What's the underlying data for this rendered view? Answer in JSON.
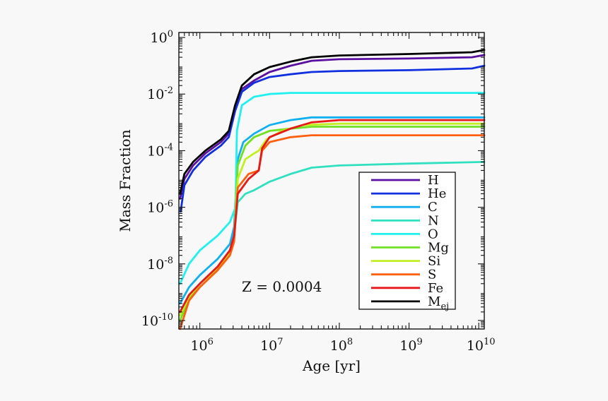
{
  "chart_data": {
    "type": "line",
    "title": "",
    "xlabel": "Age [yr]",
    "ylabel": "Mass Fraction",
    "x_scale": "log",
    "y_scale": "log",
    "xlim": [
      500000,
      12000000000
    ],
    "ylim": [
      5e-11,
      1.5
    ],
    "x_ticks": [
      {
        "value": 1000000,
        "base": "10",
        "exp": "6"
      },
      {
        "value": 10000000,
        "base": "10",
        "exp": "7"
      },
      {
        "value": 100000000,
        "base": "10",
        "exp": "8"
      },
      {
        "value": 1000000000,
        "base": "10",
        "exp": "9"
      },
      {
        "value": 10000000000,
        "base": "10",
        "exp": "10"
      }
    ],
    "y_ticks": [
      {
        "value": 1e-10,
        "base": "10",
        "exp": "-10"
      },
      {
        "value": 1e-08,
        "base": "10",
        "exp": "-8"
      },
      {
        "value": 1e-06,
        "base": "10",
        "exp": "-6"
      },
      {
        "value": 0.0001,
        "base": "10",
        "exp": "-4"
      },
      {
        "value": 0.01,
        "base": "10",
        "exp": "-2"
      },
      {
        "value": 1,
        "base": "10",
        "exp": "0"
      }
    ],
    "annotation": "Z = 0.0004",
    "legend_position": "lower-right",
    "series": [
      {
        "name": "H",
        "sub": "",
        "color": "#5a0fa0",
        "points": [
          [
            520000,
            2e-06
          ],
          [
            600000,
            1e-05
          ],
          [
            800000,
            3e-05
          ],
          [
            1200000,
            8e-05
          ],
          [
            2000000,
            0.0002
          ],
          [
            2600000,
            0.0004
          ],
          [
            3200000,
            0.003
          ],
          [
            4000000,
            0.015
          ],
          [
            6000000,
            0.03
          ],
          [
            10000000,
            0.06
          ],
          [
            20000000,
            0.1
          ],
          [
            40000000,
            0.15
          ],
          [
            100000000,
            0.17
          ],
          [
            1000000000,
            0.18
          ],
          [
            8000000000,
            0.2
          ],
          [
            12000000000,
            0.24
          ]
        ]
      },
      {
        "name": "He",
        "sub": "",
        "color": "#1030e0",
        "points": [
          [
            530000,
            7e-07
          ],
          [
            600000,
            6e-06
          ],
          [
            800000,
            2e-05
          ],
          [
            1200000,
            6e-05
          ],
          [
            2000000,
            0.00015
          ],
          [
            2600000,
            0.0003
          ],
          [
            3200000,
            0.0025
          ],
          [
            4000000,
            0.012
          ],
          [
            6000000,
            0.025
          ],
          [
            10000000,
            0.04
          ],
          [
            20000000,
            0.05
          ],
          [
            40000000,
            0.06
          ],
          [
            100000000,
            0.065
          ],
          [
            1000000000,
            0.07
          ],
          [
            8000000000,
            0.08
          ],
          [
            12000000000,
            0.1
          ]
        ]
      },
      {
        "name": "C",
        "sub": "",
        "color": "#10b0f0",
        "points": [
          [
            520000,
            4e-10
          ],
          [
            700000,
            1.5e-09
          ],
          [
            1000000,
            4e-09
          ],
          [
            1800000,
            1.5e-08
          ],
          [
            2700000,
            5e-08
          ],
          [
            3100000,
            2e-07
          ],
          [
            3500000,
            5e-05
          ],
          [
            4200000,
            0.0002
          ],
          [
            6000000,
            0.0004
          ],
          [
            10000000,
            0.0008
          ],
          [
            20000000,
            0.0012
          ],
          [
            40000000,
            0.0015
          ],
          [
            100000000,
            0.0015
          ],
          [
            12000000000,
            0.0015
          ]
        ]
      },
      {
        "name": "N",
        "sub": "",
        "color": "#30e0c0",
        "points": [
          [
            520000,
            2e-10
          ],
          [
            700000,
            8e-10
          ],
          [
            1000000,
            2e-09
          ],
          [
            1800000,
            8e-09
          ],
          [
            2700000,
            3e-08
          ],
          [
            3100000,
            1e-07
          ],
          [
            3500000,
            1.5e-06
          ],
          [
            4500000,
            3e-06
          ],
          [
            6000000,
            4e-06
          ],
          [
            10000000,
            8e-06
          ],
          [
            20000000,
            1.5e-05
          ],
          [
            40000000,
            2.5e-05
          ],
          [
            100000000,
            3e-05
          ],
          [
            1000000000,
            3.5e-05
          ],
          [
            12000000000,
            4e-05
          ]
        ]
      },
      {
        "name": "O",
        "sub": "",
        "color": "#20f0f0",
        "points": [
          [
            520000,
            2e-09
          ],
          [
            700000,
            1e-08
          ],
          [
            1000000,
            3e-08
          ],
          [
            1800000,
            1e-07
          ],
          [
            2700000,
            3e-07
          ],
          [
            3250000,
            1e-06
          ],
          [
            3400000,
            0.0005
          ],
          [
            4000000,
            0.004
          ],
          [
            6000000,
            0.008
          ],
          [
            10000000,
            0.01
          ],
          [
            20000000,
            0.011
          ],
          [
            100000000,
            0.011
          ],
          [
            12000000000,
            0.011
          ]
        ]
      },
      {
        "name": "Mg",
        "sub": "",
        "color": "#70e020",
        "points": [
          [
            520000,
            1e-10
          ],
          [
            700000,
            6e-10
          ],
          [
            1000000,
            1.5e-09
          ],
          [
            1800000,
            6e-09
          ],
          [
            2700000,
            2.5e-08
          ],
          [
            3100000,
            8e-08
          ],
          [
            3500000,
            3e-05
          ],
          [
            4500000,
            0.00015
          ],
          [
            6000000,
            0.0003
          ],
          [
            10000000,
            0.0005
          ],
          [
            20000000,
            0.0006
          ],
          [
            40000000,
            0.0007
          ],
          [
            100000000,
            0.0007
          ],
          [
            12000000000,
            0.0007
          ]
        ]
      },
      {
        "name": "Si",
        "sub": "",
        "color": "#c0f020",
        "points": [
          [
            520000,
            1.5e-10
          ],
          [
            700000,
            7e-10
          ],
          [
            1000000,
            2e-09
          ],
          [
            1800000,
            7e-09
          ],
          [
            2700000,
            2.5e-08
          ],
          [
            3100000,
            9e-08
          ],
          [
            3500000,
            1e-05
          ],
          [
            4500000,
            5e-05
          ],
          [
            6000000,
            8e-05
          ],
          [
            7000000,
            0.0001
          ],
          [
            9000000,
            0.00025
          ],
          [
            15000000,
            0.0005
          ],
          [
            30000000,
            0.0008
          ],
          [
            100000000,
            0.0009
          ],
          [
            12000000000,
            0.0009
          ]
        ]
      },
      {
        "name": "S",
        "sub": "",
        "color": "#ff6010",
        "points": [
          [
            520000,
            5e-11
          ],
          [
            700000,
            5e-10
          ],
          [
            1000000,
            1.5e-09
          ],
          [
            1800000,
            6e-09
          ],
          [
            2700000,
            2e-08
          ],
          [
            3100000,
            6e-08
          ],
          [
            3500000,
            5e-06
          ],
          [
            5000000,
            1.5e-05
          ],
          [
            7000000,
            2e-05
          ],
          [
            7800000,
            0.0001
          ],
          [
            10000000,
            0.0002
          ],
          [
            20000000,
            0.0003
          ],
          [
            40000000,
            0.00035
          ],
          [
            100000000,
            0.00035
          ],
          [
            12000000000,
            0.00035
          ]
        ]
      },
      {
        "name": "Fe",
        "sub": "",
        "color": "#e81818",
        "points": [
          [
            520000,
            2e-10
          ],
          [
            700000,
            8e-10
          ],
          [
            1000000,
            2e-09
          ],
          [
            1800000,
            8e-09
          ],
          [
            2700000,
            3e-08
          ],
          [
            3100000,
            1e-07
          ],
          [
            3500000,
            3e-06
          ],
          [
            5000000,
            1e-05
          ],
          [
            7000000,
            2e-05
          ],
          [
            7800000,
            0.00012
          ],
          [
            10000000,
            0.0003
          ],
          [
            20000000,
            0.0006
          ],
          [
            40000000,
            0.001
          ],
          [
            100000000,
            0.0012
          ],
          [
            12000000000,
            0.0012
          ]
        ]
      },
      {
        "name": "M",
        "sub": "ej",
        "color": "#000000",
        "points": [
          [
            520000,
            3e-06
          ],
          [
            600000,
            1.5e-05
          ],
          [
            800000,
            4e-05
          ],
          [
            1200000,
            0.0001
          ],
          [
            2000000,
            0.00025
          ],
          [
            2600000,
            0.0005
          ],
          [
            3200000,
            0.004
          ],
          [
            4000000,
            0.02
          ],
          [
            6000000,
            0.05
          ],
          [
            10000000,
            0.09
          ],
          [
            20000000,
            0.14
          ],
          [
            40000000,
            0.2
          ],
          [
            100000000,
            0.23
          ],
          [
            1000000000,
            0.26
          ],
          [
            8000000000,
            0.3
          ],
          [
            12000000000,
            0.36
          ]
        ]
      }
    ]
  }
}
